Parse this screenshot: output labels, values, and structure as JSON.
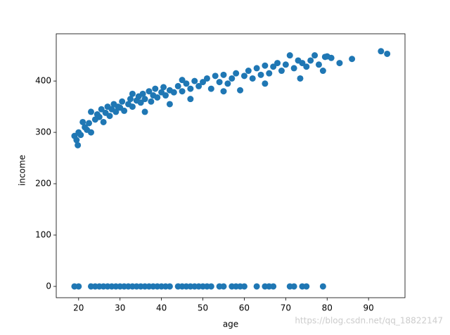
{
  "chart_data": {
    "type": "scatter",
    "xlabel": "age",
    "ylabel": "income",
    "x": [
      19,
      19.5,
      19.8,
      20,
      20.5,
      21,
      21.5,
      22,
      22.5,
      23,
      23,
      24,
      24.5,
      25,
      25.5,
      26,
      26.5,
      27,
      27.5,
      28,
      28.5,
      29,
      29.5,
      30,
      30.5,
      31,
      32,
      32.5,
      33,
      34,
      34.5,
      35,
      35.5,
      36,
      37,
      37.5,
      38,
      38.5,
      39,
      40,
      40.5,
      41,
      42,
      43,
      44,
      45,
      46,
      47,
      48,
      49,
      50,
      51,
      52,
      53,
      54,
      55,
      56,
      57,
      58,
      59,
      60,
      61,
      62,
      63,
      64,
      65,
      66,
      67,
      68,
      69,
      70,
      71,
      72,
      73,
      73.5,
      74,
      75,
      76,
      77,
      78,
      79,
      79.5,
      80,
      81,
      83,
      86,
      93,
      94.5,
      36,
      42,
      47,
      55,
      65,
      33,
      45,
      19,
      20,
      23,
      24,
      25,
      26,
      27,
      28,
      29,
      30,
      31,
      32,
      33,
      34,
      35,
      36,
      37,
      38,
      39,
      40,
      41,
      42,
      44,
      45,
      46,
      47,
      48,
      49,
      50,
      51,
      52,
      54,
      55,
      57,
      58,
      59,
      60,
      63,
      65,
      66,
      67,
      71,
      72,
      74,
      75,
      79
    ],
    "y": [
      293,
      285,
      275,
      300,
      295,
      320,
      310,
      305,
      318,
      340,
      300,
      325,
      335,
      330,
      345,
      320,
      338,
      350,
      332,
      345,
      355,
      340,
      350,
      348,
      360,
      342,
      355,
      365,
      350,
      362,
      370,
      358,
      375,
      365,
      380,
      360,
      372,
      385,
      368,
      378,
      388,
      372,
      382,
      378,
      390,
      380,
      395,
      385,
      400,
      390,
      398,
      405,
      385,
      410,
      398,
      412,
      395,
      405,
      415,
      382,
      410,
      420,
      405,
      425,
      412,
      430,
      415,
      428,
      435,
      420,
      432,
      450,
      425,
      440,
      405,
      435,
      428,
      440,
      450,
      432,
      420,
      447,
      448,
      445,
      435,
      443,
      458,
      453,
      340,
      355,
      365,
      380,
      395,
      375,
      402,
      0,
      0,
      0,
      0,
      0,
      0,
      0,
      0,
      0,
      0,
      0,
      0,
      0,
      0,
      0,
      0,
      0,
      0,
      0,
      0,
      0,
      0,
      0,
      0,
      0,
      0,
      0,
      0,
      0,
      0,
      0,
      0,
      0,
      0,
      0,
      0,
      0,
      0,
      0,
      0,
      0,
      0,
      0,
      0,
      0,
      0
    ],
    "color": "#1f77b4",
    "xlim": [
      14.6,
      98.8
    ],
    "ylim": [
      -22,
      492
    ],
    "xticks": [
      20,
      30,
      40,
      50,
      60,
      70,
      80,
      90
    ],
    "yticks": [
      0,
      100,
      200,
      300,
      400
    ],
    "grid": false,
    "watermark": "https://blog.csdn.net/qq_18822147"
  }
}
